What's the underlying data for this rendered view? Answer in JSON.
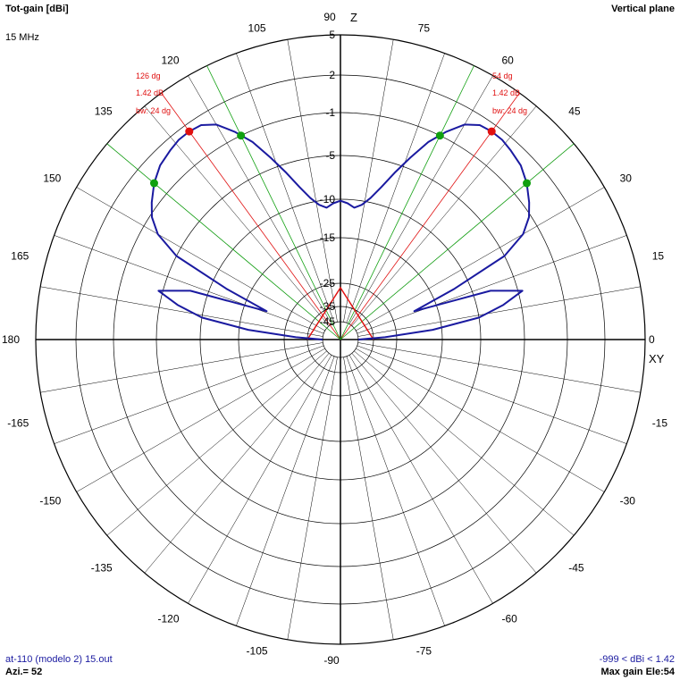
{
  "header": {
    "title_left": "Tot-gain [dBi]",
    "frequency": "15 MHz",
    "title_right": "Vertical plane"
  },
  "footer": {
    "file": "at-110 (modelo 2) 15.out",
    "azimuth": "Azi.= 52",
    "range": "-999 < dBi < 1.42",
    "max_gain": "Max gain Ele:54"
  },
  "axis_labels": {
    "top": "Z",
    "right": "XY"
  },
  "colors": {
    "pattern": "#1a1aa0",
    "max_marker": "#e01010",
    "beamwidth_marker": "#10a010",
    "grid": "#000000"
  },
  "chart_data": {
    "type": "polar",
    "angle_unit": "deg",
    "angle_ticks": [
      0,
      15,
      30,
      45,
      60,
      75,
      90,
      105,
      120,
      135,
      150,
      165,
      180,
      -165,
      -150,
      -135,
      -120,
      -105,
      -90,
      -75,
      -60,
      -45,
      -30,
      -15
    ],
    "radial_ticks": [
      5,
      2,
      -1,
      -5,
      -10,
      -15,
      -25,
      -35,
      -45
    ],
    "radial_range": [
      -45,
      5
    ],
    "max_gain": {
      "right": {
        "angle": 54,
        "gain": 1.42,
        "beamwidth": 24,
        "labels": [
          "54 dg",
          "1.42 dB",
          "bw: 24 dg"
        ]
      },
      "left": {
        "angle": 126,
        "gain": 1.42,
        "beamwidth": 24,
        "labels": [
          "126 dg",
          "1.42 dB",
          "bw: 24 dg"
        ]
      }
    },
    "beamwidth_lines": [
      40,
      64,
      116,
      140
    ],
    "series": [
      {
        "angles": [
          0,
          3,
          6,
          9,
          12,
          15,
          18,
          21,
          24,
          27,
          30,
          33,
          36,
          40,
          44,
          48,
          51,
          54,
          57,
          60,
          63,
          66,
          69,
          72,
          75,
          78,
          81,
          84,
          87,
          90
        ],
        "gain_dbi": [
          -45,
          -30,
          -17,
          -10,
          -7,
          -4.6,
          -8,
          -20,
          -12,
          -5,
          -2.5,
          -1.2,
          -0.5,
          0.3,
          0.9,
          1.2,
          1.4,
          1.42,
          1.3,
          0.7,
          -0.5,
          -2,
          -4,
          -6,
          -8,
          -9.5,
          -10.5,
          -11,
          -10.5,
          -10.2
        ]
      }
    ]
  }
}
